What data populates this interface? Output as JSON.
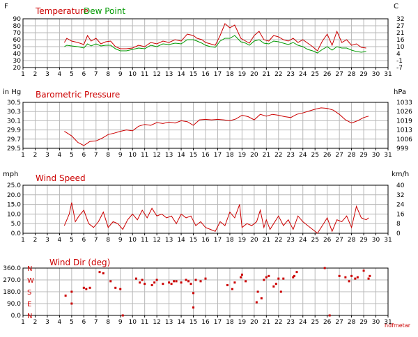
{
  "brand": "hdfmetar",
  "colors": {
    "accent": "#cc0000",
    "dew": "#009900",
    "grid": "#b8b8b8",
    "text": "#000000"
  },
  "chart_data": [
    {
      "type": "line",
      "title": "",
      "panel_id": "temp",
      "left_unit": "F",
      "right_unit": "C",
      "xlim": [
        1,
        31
      ],
      "ylim": [
        20,
        90
      ],
      "x_ticks": [
        1,
        2,
        3,
        4,
        5,
        6,
        7,
        8,
        9,
        10,
        11,
        12,
        13,
        14,
        15,
        16,
        17,
        18,
        19,
        20,
        21,
        22,
        23,
        24,
        25,
        26,
        27,
        28,
        29,
        30,
        31
      ],
      "y_ticks": [
        20,
        30,
        40,
        50,
        60,
        70,
        80,
        90
      ],
      "y_right_ticks": [
        "-7",
        "-1",
        "4",
        "10",
        "16",
        "21",
        "27",
        "32"
      ],
      "grid": true,
      "series": [
        {
          "name": "Temperature",
          "color": "#cc0000",
          "x": [
            4.4,
            4.6,
            5.0,
            5.5,
            6.0,
            6.3,
            6.6,
            7.0,
            7.4,
            7.8,
            8.2,
            8.6,
            9.0,
            9.5,
            10.0,
            10.5,
            11.0,
            11.5,
            12.0,
            12.5,
            13.0,
            13.5,
            14.0,
            14.5,
            15.0,
            15.3,
            15.7,
            16.0,
            16.4,
            16.8,
            17.2,
            17.6,
            18.0,
            18.4,
            18.9,
            19.3,
            19.6,
            20.0,
            20.4,
            20.8,
            21.2,
            21.6,
            22.0,
            22.4,
            22.8,
            23.2,
            23.6,
            24.0,
            24.4,
            24.8,
            25.2,
            25.6,
            26.0,
            26.4,
            26.8,
            27.2,
            27.6,
            28.0,
            28.4,
            28.8,
            29.2
          ],
          "y": [
            56,
            62,
            58,
            56,
            53,
            66,
            58,
            62,
            54,
            57,
            58,
            50,
            47,
            47,
            48,
            52,
            50,
            56,
            54,
            58,
            56,
            60,
            58,
            68,
            66,
            62,
            60,
            56,
            54,
            52,
            66,
            83,
            77,
            81,
            62,
            58,
            55,
            66,
            72,
            60,
            58,
            66,
            64,
            60,
            58,
            62,
            56,
            60,
            55,
            50,
            44,
            58,
            68,
            52,
            72,
            56,
            60,
            52,
            54,
            49,
            48
          ]
        },
        {
          "name": "Dew Point",
          "color": "#009900",
          "x": [
            4.4,
            4.6,
            5.0,
            5.5,
            6.0,
            6.3,
            6.6,
            7.0,
            7.4,
            7.8,
            8.2,
            8.6,
            9.0,
            9.5,
            10.0,
            10.5,
            11.0,
            11.5,
            12.0,
            12.5,
            13.0,
            13.5,
            14.0,
            14.5,
            15.0,
            15.3,
            15.7,
            16.0,
            16.4,
            16.8,
            17.2,
            17.6,
            18.0,
            18.4,
            18.9,
            19.3,
            19.6,
            20.0,
            20.4,
            20.8,
            21.2,
            21.6,
            22.0,
            22.4,
            22.8,
            23.2,
            23.6,
            24.0,
            24.4,
            24.8,
            25.2,
            25.6,
            26.0,
            26.4,
            26.8,
            27.2,
            27.6,
            28.0,
            28.4,
            28.8,
            29.2
          ],
          "y": [
            50,
            52,
            51,
            50,
            48,
            54,
            51,
            54,
            51,
            52,
            52,
            47,
            44,
            44,
            46,
            48,
            47,
            52,
            50,
            54,
            53,
            55,
            54,
            60,
            60,
            58,
            55,
            52,
            50,
            49,
            58,
            62,
            62,
            66,
            57,
            55,
            52,
            58,
            60,
            55,
            54,
            58,
            57,
            55,
            53,
            56,
            52,
            50,
            46,
            44,
            41,
            46,
            50,
            45,
            50,
            48,
            48,
            45,
            43,
            42,
            43
          ]
        }
      ]
    },
    {
      "type": "line",
      "panel_id": "pressure",
      "title": "",
      "left_unit": "in Hg",
      "right_unit": "hPa",
      "xlim": [
        1,
        31
      ],
      "ylim": [
        29.5,
        30.5
      ],
      "x_ticks": [
        1,
        2,
        3,
        4,
        5,
        6,
        7,
        8,
        9,
        10,
        11,
        12,
        13,
        14,
        15,
        16,
        17,
        18,
        19,
        20,
        21,
        22,
        23,
        24,
        25,
        26,
        27,
        28,
        29,
        30,
        31
      ],
      "y_ticks": [
        "29.5",
        "29.7",
        "29.9",
        "30.1",
        "30.3",
        "30.5"
      ],
      "y_right_ticks": [
        "999",
        "1006",
        "1013",
        "1019",
        "1026",
        "1033"
      ],
      "grid": true,
      "series": [
        {
          "name": "Barometric Pressure",
          "color": "#cc0000",
          "x": [
            4.4,
            5.0,
            5.5,
            6.0,
            6.5,
            7.0,
            7.5,
            8.0,
            8.5,
            9.0,
            9.5,
            10.0,
            10.5,
            11.0,
            11.5,
            12.0,
            12.5,
            13.0,
            13.5,
            14.0,
            14.5,
            15.0,
            15.5,
            16.0,
            16.5,
            17.0,
            17.5,
            18.0,
            18.5,
            19.0,
            19.5,
            20.0,
            20.5,
            21.0,
            21.5,
            22.0,
            22.5,
            23.0,
            23.5,
            24.0,
            24.5,
            25.0,
            25.5,
            26.0,
            26.5,
            27.0,
            27.5,
            28.0,
            28.5,
            29.0,
            29.4
          ],
          "y": [
            29.87,
            29.77,
            29.63,
            29.56,
            29.65,
            29.66,
            29.72,
            29.8,
            29.83,
            29.87,
            29.9,
            29.88,
            29.98,
            30.02,
            30.0,
            30.06,
            30.04,
            30.07,
            30.05,
            30.1,
            30.08,
            30.0,
            30.12,
            30.13,
            30.12,
            30.13,
            30.12,
            30.1,
            30.14,
            30.22,
            30.19,
            30.12,
            30.24,
            30.2,
            30.24,
            30.22,
            30.19,
            30.17,
            30.24,
            30.27,
            30.31,
            30.35,
            30.38,
            30.37,
            30.33,
            30.24,
            30.12,
            30.05,
            30.1,
            30.17,
            30.2
          ]
        }
      ]
    },
    {
      "type": "line",
      "panel_id": "wind",
      "title": "",
      "left_unit": "mph",
      "right_unit": "km/h",
      "xlim": [
        1,
        31
      ],
      "ylim": [
        0,
        25
      ],
      "x_ticks": [
        1,
        2,
        3,
        4,
        5,
        6,
        7,
        8,
        9,
        10,
        11,
        12,
        13,
        14,
        15,
        16,
        17,
        18,
        19,
        20,
        21,
        22,
        23,
        24,
        25,
        26,
        27,
        28,
        29,
        30,
        31
      ],
      "y_ticks": [
        "0.0",
        "5.0",
        "10.0",
        "15.0",
        "20.0",
        "25.0"
      ],
      "y_right_ticks": [
        "0",
        "8",
        "16",
        "24",
        "32",
        "40"
      ],
      "grid": true,
      "series": [
        {
          "name": "Wind Speed",
          "color": "#cc0000",
          "x": [
            4.4,
            4.8,
            5.0,
            5.3,
            5.6,
            6.0,
            6.4,
            6.8,
            7.2,
            7.6,
            8.0,
            8.4,
            8.8,
            9.2,
            9.6,
            10.0,
            10.4,
            10.8,
            11.2,
            11.6,
            12.0,
            12.4,
            12.8,
            13.2,
            13.6,
            14.0,
            14.4,
            14.8,
            15.2,
            15.6,
            16.0,
            16.4,
            16.8,
            17.2,
            17.6,
            18.0,
            18.4,
            18.8,
            19.0,
            19.4,
            19.8,
            20.2,
            20.5,
            20.8,
            21.0,
            21.3,
            21.6,
            22.0,
            22.4,
            22.8,
            23.2,
            23.6,
            24.0,
            24.4,
            24.8,
            25.2,
            25.6,
            26.0,
            26.4,
            26.8,
            27.2,
            27.6,
            28.0,
            28.4,
            28.8,
            29.2,
            29.4
          ],
          "y": [
            4,
            10,
            16,
            6,
            9,
            12,
            5,
            3,
            6,
            11,
            3,
            6,
            5,
            2,
            7,
            10,
            7,
            12,
            8,
            13,
            9,
            10,
            8,
            9,
            5,
            10,
            8,
            9,
            4,
            6,
            3,
            2,
            1,
            6,
            4,
            11,
            8,
            15,
            3,
            5,
            4,
            6,
            12,
            3,
            7,
            2,
            5,
            9,
            4,
            7,
            2,
            9,
            6,
            4,
            2,
            0,
            4,
            8,
            1,
            7,
            6,
            9,
            3,
            14,
            8,
            7,
            8
          ]
        }
      ]
    },
    {
      "type": "scatter",
      "panel_id": "dir",
      "title": "",
      "left_unit": "",
      "right_unit": "",
      "xlim": [
        1,
        31
      ],
      "ylim": [
        0,
        360
      ],
      "x_ticks": [
        1,
        2,
        3,
        4,
        5,
        6,
        7,
        8,
        9,
        10,
        11,
        12,
        13,
        14,
        15,
        16,
        17,
        18,
        19,
        20,
        21,
        22,
        23,
        24,
        25,
        26,
        27,
        28,
        29,
        30,
        31
      ],
      "y_ticks": [
        "0.0",
        "90.0",
        "180.0",
        "270.0",
        "360.0"
      ],
      "compass_labels": [
        "N",
        "E",
        "S",
        "W",
        "N"
      ],
      "grid": true,
      "series": [
        {
          "name": "Wind Dir (deg)",
          "color": "#cc0000",
          "x": [
            4.5,
            5.0,
            5.0,
            6.0,
            6.2,
            6.5,
            7.3,
            7.6,
            8.2,
            8.6,
            9.0,
            9.2,
            10.3,
            10.6,
            10.8,
            11.0,
            11.6,
            11.8,
            12.0,
            12.5,
            13.0,
            13.2,
            13.4,
            13.6,
            14.0,
            14.4,
            14.6,
            14.8,
            15.0,
            15.0,
            15.2,
            15.6,
            16.0,
            17.8,
            18.2,
            18.4,
            18.9,
            19.0,
            19.3,
            20.2,
            20.3,
            20.6,
            20.8,
            21.0,
            21.2,
            21.6,
            21.8,
            22.0,
            22.2,
            22.4,
            23.2,
            23.3,
            23.5,
            25.8,
            26.2,
            27.0,
            27.5,
            27.8,
            28.0,
            28.3,
            28.5,
            29.0,
            29.4,
            29.5
          ],
          "y": [
            150,
            90,
            180,
            210,
            200,
            210,
            330,
            320,
            260,
            210,
            200,
            0,
            280,
            250,
            270,
            240,
            230,
            250,
            270,
            240,
            250,
            240,
            260,
            260,
            250,
            270,
            260,
            240,
            170,
            60,
            270,
            260,
            280,
            230,
            200,
            250,
            290,
            310,
            260,
            100,
            180,
            130,
            270,
            290,
            300,
            220,
            240,
            280,
            180,
            280,
            290,
            300,
            330,
            360,
            0,
            300,
            290,
            260,
            300,
            280,
            290,
            340,
            280,
            300
          ]
        }
      ]
    }
  ]
}
